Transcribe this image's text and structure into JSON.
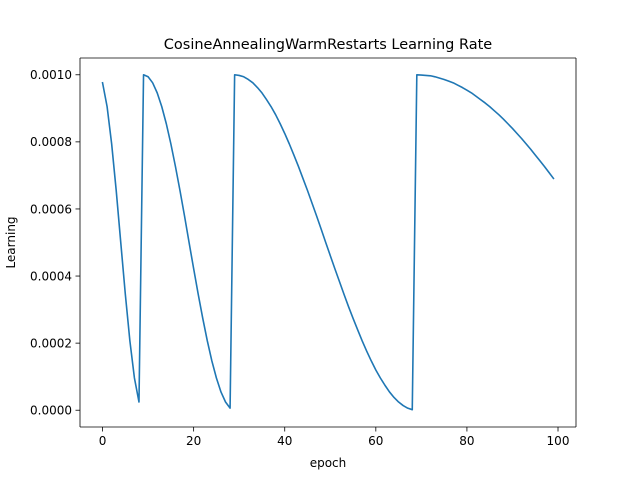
{
  "chart_data": {
    "type": "line",
    "title": "CosineAnnealingWarmRestarts Learning Rate",
    "xlabel": "epoch",
    "ylabel": "Learning",
    "xlim": [
      -4.95,
      103.95
    ],
    "ylim": [
      -5e-05,
      0.00105
    ],
    "xticks": [
      0,
      20,
      40,
      60,
      80,
      100
    ],
    "xtick_labels": [
      "0",
      "20",
      "40",
      "60",
      "80",
      "100"
    ],
    "yticks": [
      0.0,
      0.0002,
      0.0004,
      0.0006,
      0.0008,
      0.001
    ],
    "ytick_labels": [
      "0.0000",
      "0.0002",
      "0.0004",
      "0.0006",
      "0.0008",
      "0.0010"
    ],
    "grid": false,
    "line_color": "#1f77b4",
    "series": [
      {
        "x": [
          0,
          1,
          2,
          3,
          4,
          5,
          6,
          7,
          8,
          9,
          10,
          11,
          12,
          13,
          14,
          15,
          16,
          17,
          18,
          19,
          20,
          21,
          22,
          23,
          24,
          25,
          26,
          27,
          28,
          29,
          30,
          31,
          32,
          33,
          34,
          35,
          36,
          37,
          38,
          39,
          40,
          41,
          42,
          43,
          44,
          45,
          46,
          47,
          48,
          49,
          50,
          51,
          52,
          53,
          54,
          55,
          56,
          57,
          58,
          59,
          60,
          61,
          62,
          63,
          64,
          65,
          66,
          67,
          68,
          69,
          70,
          71,
          72,
          73,
          74,
          75,
          76,
          77,
          78,
          79,
          80,
          81,
          82,
          83,
          84,
          85,
          86,
          87,
          88,
          89,
          90,
          91,
          92,
          93,
          94,
          95,
          96,
          97,
          98,
          99
        ],
        "y": [
          0.000976,
          0.000905,
          0.000794,
          0.000655,
          0.0005,
          0.000346,
          0.000207,
          9.61e-05,
          2.45e-05,
          0.001,
          0.000994,
          0.000976,
          0.000946,
          0.000905,
          0.000854,
          0.000794,
          0.000727,
          0.000655,
          0.000579,
          0.0005,
          0.000422,
          0.000346,
          0.000274,
          0.000207,
          0.000147,
          9.61e-05,
          5.45e-05,
          2.45e-05,
          6.2e-06,
          0.001,
          0.000998,
          0.000994,
          0.000986,
          0.000976,
          0.000962,
          0.000946,
          0.000926,
          0.000905,
          0.000881,
          0.000854,
          0.000825,
          0.000794,
          0.000761,
          0.000727,
          0.000691,
          0.000655,
          0.000617,
          0.000579,
          0.00054,
          0.0005,
          0.000461,
          0.000422,
          0.000384,
          0.000346,
          0.000309,
          0.000274,
          0.00024,
          0.000207,
          0.000176,
          0.000147,
          0.00012,
          9.61e-05,
          7.45e-05,
          5.45e-05,
          3.81e-05,
          2.45e-05,
          1.39e-05,
          6.2e-06,
          1.6e-06,
          0.001,
          0.000999,
          0.000998,
          0.000997,
          0.000994,
          0.00099,
          0.000986,
          0.000981,
          0.000976,
          0.000969,
          0.000962,
          0.000954,
          0.000946,
          0.000936,
          0.000926,
          0.000916,
          0.000905,
          0.000893,
          0.000881,
          0.000868,
          0.000854,
          0.00084,
          0.000825,
          0.00081,
          0.000794,
          0.000778,
          0.000761,
          0.000744,
          0.000727,
          0.000709,
          0.000691
        ]
      }
    ]
  }
}
